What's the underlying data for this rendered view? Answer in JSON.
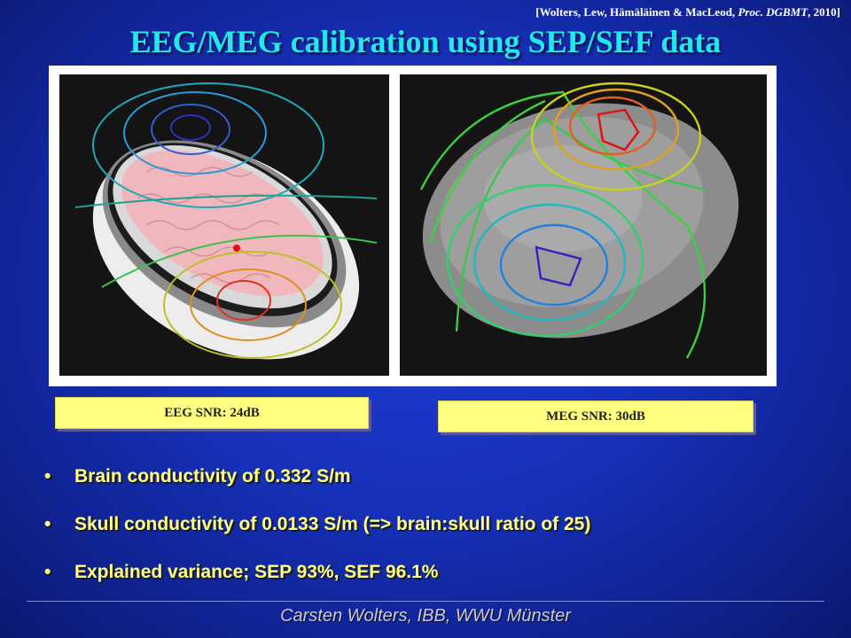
{
  "citation": {
    "open": "[Wolters, Lew, Hämäläinen & MacLeod, ",
    "journal": "Proc. DGBMT",
    "close": ", 2010]"
  },
  "title": "EEG/MEG calibration using SEP/SEF data",
  "snr_labels": {
    "eeg": "EEG SNR: 24dB",
    "meg": "MEG SNR: 30dB"
  },
  "bullets": [
    "Brain conductivity of 0.332 S/m",
    "Skull conductivity of 0.0133 S/m (=> brain:skull ratio of 25)",
    "Explained variance; SEP 93%, SEF 96.1%"
  ],
  "bullet_glyph": "•",
  "footer": "Carsten Wolters, IBB, WWU Münster",
  "colors": {
    "title": "#22e8ee",
    "bullet_text": "#ffff80",
    "snr_box": "#ffff80",
    "background": "#1630b8"
  },
  "images": {
    "left": "eeg-head-model-with-contours",
    "right": "meg-brain-surface-with-contours"
  }
}
